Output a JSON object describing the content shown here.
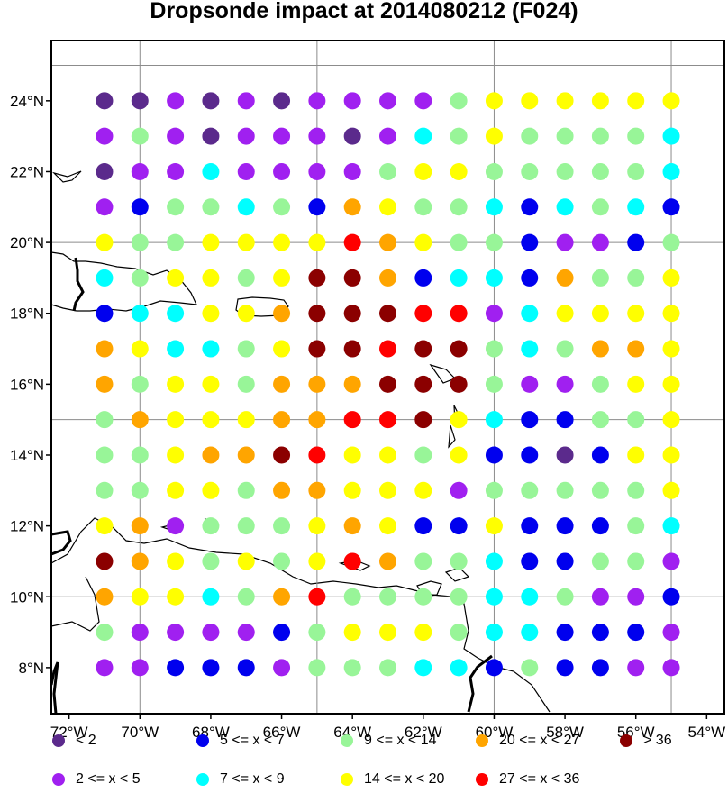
{
  "title": "Dropsonde impact at 2014080212 (F024)",
  "map": {
    "lon_range": [
      -72.5,
      -53.5
    ],
    "lat_range": [
      6.7,
      25.7
    ],
    "lon_ticks": [
      "72°W",
      "70°W",
      "68°W",
      "66°W",
      "64°W",
      "62°W",
      "60°W",
      "58°W",
      "56°W",
      "54°W"
    ],
    "lat_ticks": [
      "8°N",
      "10°N",
      "12°N",
      "14°N",
      "16°N",
      "18°N",
      "20°N",
      "22°N",
      "24°N"
    ],
    "grid_lons": [
      -70,
      -65,
      -60,
      -55
    ],
    "grid_lats": [
      10,
      15,
      20,
      25
    ],
    "grid_color": "#8c8c8c"
  },
  "legend": [
    {
      "key": "a",
      "label": "<  2",
      "color": "#5b2a8c"
    },
    {
      "key": "b",
      "label": "2 <= x <  5",
      "color": "#a020f0"
    },
    {
      "key": "c",
      "label": "5 <= x <  7",
      "color": "#0000ee"
    },
    {
      "key": "d",
      "label": "7 <= x <  9",
      "color": "#00ffff"
    },
    {
      "key": "e",
      "label": "9 <= x < 14",
      "color": "#98f598"
    },
    {
      "key": "f",
      "label": "14 <= x < 20",
      "color": "#ffff00"
    },
    {
      "key": "g",
      "label": "20 <= x < 27",
      "color": "#ffa500"
    },
    {
      "key": "h",
      "label": "27 <= x < 36",
      "color": "#ff0000"
    },
    {
      "key": "i",
      "label": "> 36",
      "color": "#8b0000"
    }
  ],
  "chart_data": {
    "type": "scatter",
    "lons": [
      -71,
      -70,
      -69,
      -68,
      -67,
      -66,
      -65,
      -64,
      -63,
      -62,
      -61,
      -60,
      -59,
      -58,
      -57,
      -56,
      -55
    ],
    "lats": [
      24,
      23,
      22,
      21,
      20,
      19,
      18,
      17,
      16,
      15,
      14,
      13,
      12,
      11,
      10,
      9,
      8
    ],
    "categories": [
      "aabababbbbeffffff",
      "bebabbbabdefeeeed",
      "abbdbbbbeffeeeeed",
      "bceedecgfeedcdedc",
      "feeffffhgfeecbbce",
      "deffefiigcddcgeef",
      "cddffgiiihhbdffff",
      "gfddefiihiiedeggf",
      "geffegggiiiebbeff",
      "egfffgghhifdcceef",
      "eefggihffefccacff",
      "eeffeggfffbeeeeef",
      "fgbeeefgfccfccced",
      "igfefefhgeedcceeb",
      "gffdegheeeeddebbc",
      "ebbbbcefffeddcccb",
      "bbcccbeeeddceccbb"
    ]
  }
}
